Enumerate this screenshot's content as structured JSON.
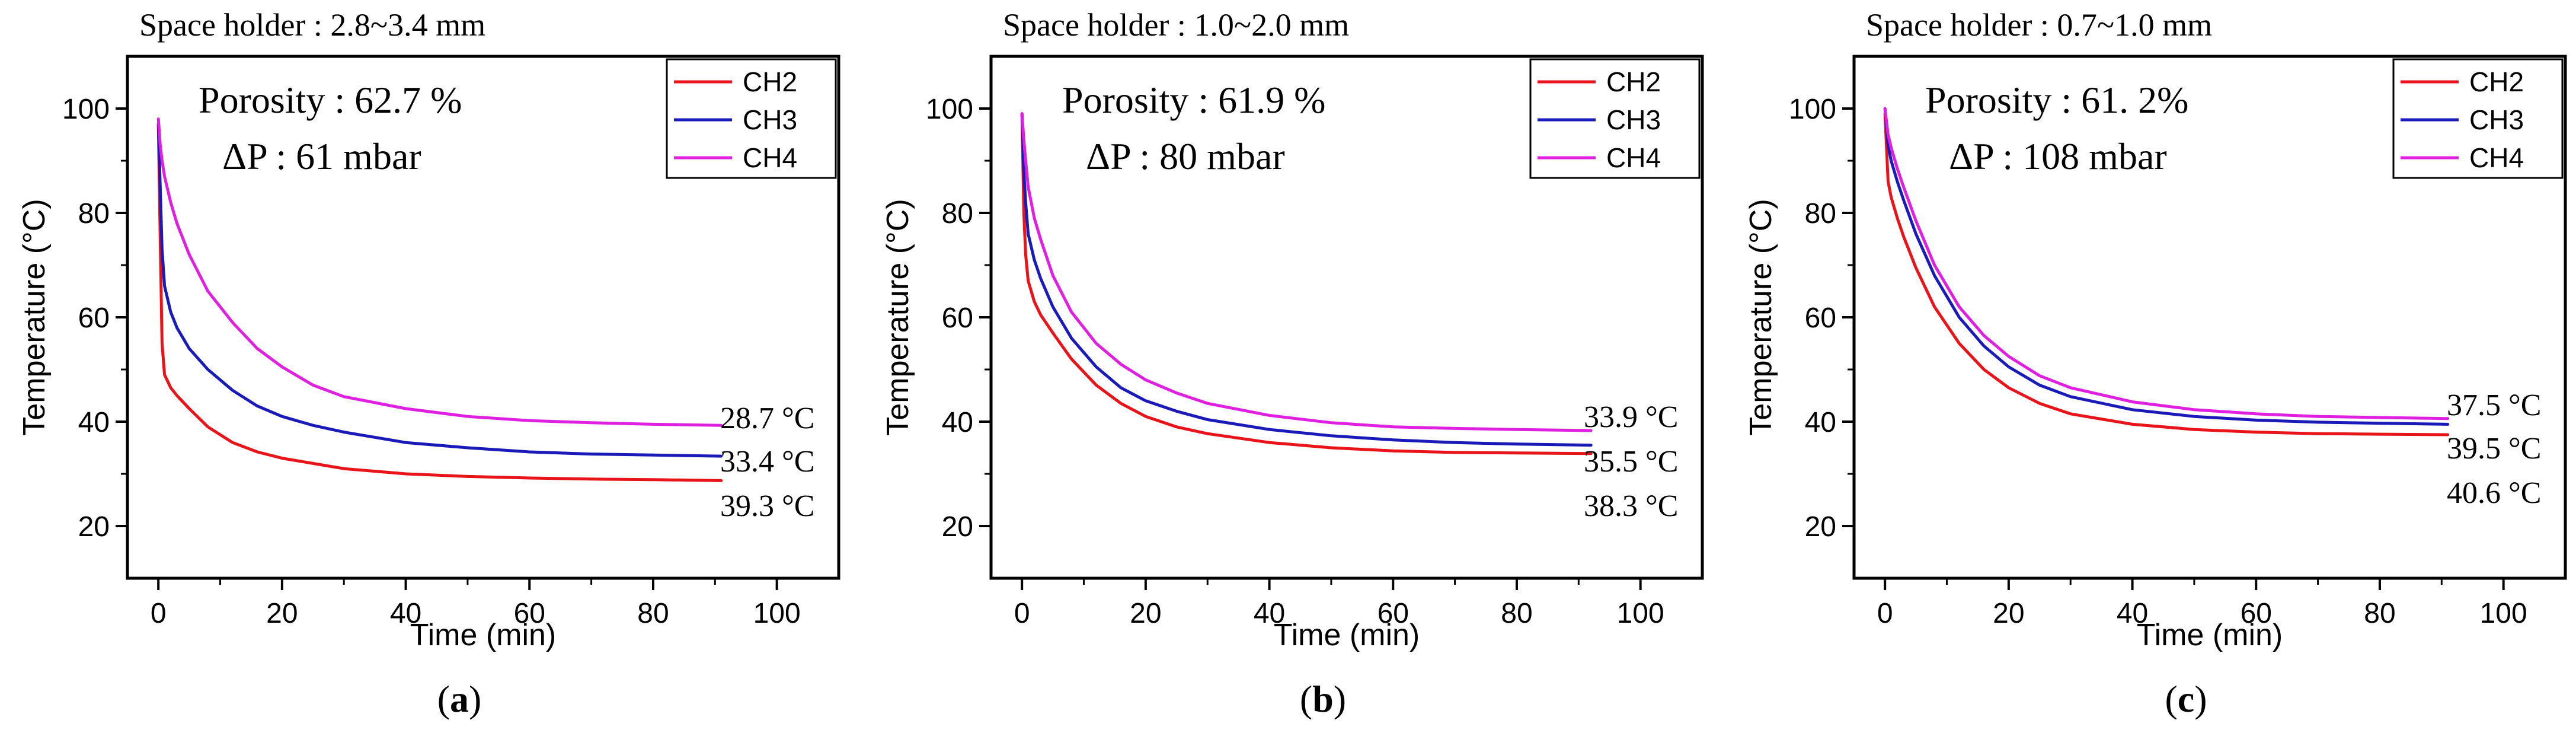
{
  "figure": {
    "colors": {
      "CH2": "#e8141a",
      "CH3": "#1a1ab8",
      "CH4": "#e020e0",
      "axis": "#000000"
    }
  },
  "chart_data": [
    {
      "type": "line",
      "panel_label": "a",
      "title": "Space holder : 2.8~3.4 mm",
      "annotations": [
        "Porosity : 62.7 %",
        "ΔP : 61 mbar"
      ],
      "xlabel": "Time (min)",
      "ylabel": "Temperature (°C)",
      "xlim": [
        -5,
        110
      ],
      "ylim": [
        10,
        110
      ],
      "xticks": [
        0,
        20,
        40,
        60,
        80,
        100
      ],
      "yticks": [
        20,
        40,
        60,
        80,
        100
      ],
      "legend": [
        "CH2",
        "CH3",
        "CH4"
      ],
      "legend_position": "top-right",
      "series": [
        {
          "name": "CH2",
          "x": [
            0,
            0.3,
            0.6,
            1,
            2,
            3,
            5,
            8,
            12,
            16,
            20,
            25,
            30,
            40,
            50,
            60,
            70,
            80,
            91
          ],
          "y": [
            97,
            75,
            55,
            49,
            46.5,
            45,
            42.5,
            39,
            36,
            34.2,
            33,
            32,
            31,
            30,
            29.5,
            29.2,
            29,
            28.9,
            28.7
          ]
        },
        {
          "name": "CH3",
          "x": [
            0,
            0.3,
            0.6,
            1,
            2,
            3,
            5,
            8,
            12,
            16,
            20,
            25,
            30,
            40,
            50,
            60,
            70,
            80,
            91
          ],
          "y": [
            97,
            85,
            73,
            66,
            61,
            58,
            54,
            50,
            46,
            43,
            41,
            39.3,
            38,
            36,
            35,
            34.2,
            33.8,
            33.6,
            33.4
          ]
        },
        {
          "name": "CH4",
          "x": [
            0,
            0.3,
            0.6,
            1,
            2,
            3,
            5,
            8,
            12,
            16,
            20,
            25,
            30,
            40,
            50,
            60,
            70,
            80,
            91
          ],
          "y": [
            98,
            93,
            90,
            87,
            82,
            78,
            72,
            65,
            59,
            54,
            50.5,
            47,
            44.8,
            42.5,
            41,
            40.2,
            39.8,
            39.5,
            39.3
          ]
        }
      ],
      "end_labels": [
        "28.7 °C",
        "33.4 °C",
        "39.3 °C"
      ]
    },
    {
      "type": "line",
      "panel_label": "b",
      "title": "Space holder : 1.0~2.0 mm",
      "annotations": [
        "Porosity : 61.9 %",
        "ΔP : 80 mbar"
      ],
      "xlabel": "Time (min)",
      "ylabel": "Temperature (°C)",
      "xlim": [
        -5,
        110
      ],
      "ylim": [
        10,
        110
      ],
      "xticks": [
        0,
        20,
        40,
        60,
        80,
        100
      ],
      "yticks": [
        20,
        40,
        60,
        80,
        100
      ],
      "legend": [
        "CH2",
        "CH3",
        "CH4"
      ],
      "legend_position": "top-right",
      "series": [
        {
          "name": "CH2",
          "x": [
            0,
            0.3,
            0.6,
            1,
            2,
            3,
            5,
            8,
            12,
            16,
            20,
            25,
            30,
            40,
            50,
            60,
            70,
            80,
            92
          ],
          "y": [
            99,
            80,
            72,
            67,
            63,
            60.5,
            57,
            52,
            47,
            43.5,
            41,
            39,
            37.7,
            36,
            35,
            34.4,
            34.1,
            34,
            33.9
          ]
        },
        {
          "name": "CH3",
          "x": [
            0,
            0.3,
            0.6,
            1,
            2,
            3,
            5,
            8,
            12,
            16,
            20,
            25,
            30,
            40,
            50,
            60,
            70,
            80,
            92
          ],
          "y": [
            99,
            88,
            82,
            76,
            71,
            67.5,
            62,
            56,
            50.5,
            46.5,
            44,
            42,
            40.4,
            38.5,
            37.3,
            36.5,
            36,
            35.7,
            35.5
          ]
        },
        {
          "name": "CH4",
          "x": [
            0,
            0.3,
            0.6,
            1,
            2,
            3,
            5,
            8,
            12,
            16,
            20,
            25,
            30,
            40,
            50,
            60,
            70,
            80,
            92
          ],
          "y": [
            99,
            94,
            90,
            85,
            79,
            75,
            68,
            61,
            55,
            51,
            48,
            45.5,
            43.5,
            41.2,
            39.8,
            39,
            38.7,
            38.5,
            38.3
          ]
        }
      ],
      "end_labels": [
        "33.9 °C",
        "35.5 °C",
        "38.3 °C"
      ]
    },
    {
      "type": "line",
      "panel_label": "c",
      "title": "Space holder : 0.7~1.0 mm",
      "annotations": [
        "Porosity : 61. 2%",
        "ΔP : 108 mbar"
      ],
      "xlabel": "Time (min)",
      "ylabel": "Temperature (°C)",
      "xlim": [
        -5,
        110
      ],
      "ylim": [
        10,
        110
      ],
      "xticks": [
        0,
        20,
        40,
        60,
        80,
        100
      ],
      "yticks": [
        20,
        40,
        60,
        80,
        100
      ],
      "legend": [
        "CH2",
        "CH3",
        "CH4"
      ],
      "legend_position": "top-right",
      "series": [
        {
          "name": "CH2",
          "x": [
            0,
            0.5,
            1,
            2,
            3,
            5,
            8,
            12,
            16,
            20,
            25,
            30,
            40,
            50,
            60,
            70,
            80,
            91
          ],
          "y": [
            99,
            86,
            83,
            79,
            75.5,
            69.5,
            62,
            55,
            50,
            46.5,
            43.5,
            41.5,
            39.5,
            38.5,
            38,
            37.7,
            37.6,
            37.5
          ]
        },
        {
          "name": "CH3",
          "x": [
            0,
            0.5,
            1,
            2,
            3,
            5,
            8,
            12,
            16,
            20,
            25,
            30,
            40,
            50,
            60,
            70,
            80,
            91
          ],
          "y": [
            100,
            93,
            90,
            86,
            82.5,
            76,
            68,
            60,
            54.5,
            50.5,
            47,
            44.8,
            42.3,
            41,
            40.3,
            39.9,
            39.7,
            39.5
          ]
        },
        {
          "name": "CH4",
          "x": [
            0,
            0.5,
            1,
            2,
            3,
            5,
            8,
            12,
            16,
            20,
            25,
            30,
            40,
            50,
            60,
            70,
            80,
            91
          ],
          "y": [
            100,
            95,
            92.5,
            88.5,
            85,
            78.5,
            70,
            62,
            56.5,
            52.5,
            48.8,
            46.5,
            43.8,
            42.3,
            41.5,
            41,
            40.8,
            40.6
          ]
        }
      ],
      "end_labels": [
        "37.5 °C",
        "39.5 °C",
        "40.6 °C"
      ]
    }
  ]
}
